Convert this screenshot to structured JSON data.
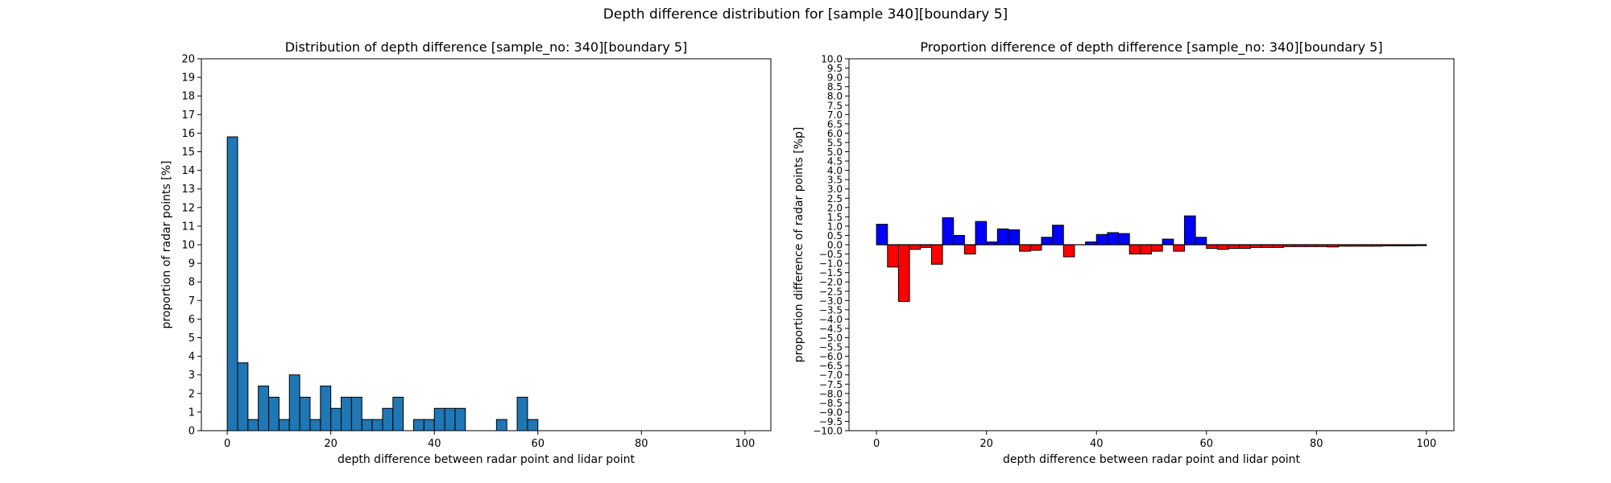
{
  "suptitle": "Depth difference distribution for [sample 340][boundary 5]",
  "chart_data": [
    {
      "type": "bar",
      "title": "Distribution of depth difference [sample_no: 340][boundary 5]",
      "xlabel": "depth difference between radar point and lidar point",
      "ylabel": "proportion of radar points [%]",
      "xlim": [
        -5,
        105
      ],
      "ylim": [
        0,
        20
      ],
      "xticks": [
        0,
        20,
        40,
        60,
        80,
        100
      ],
      "yticks": [
        0,
        1,
        2,
        3,
        4,
        5,
        6,
        7,
        8,
        9,
        10,
        11,
        12,
        13,
        14,
        15,
        16,
        17,
        18,
        19,
        20
      ],
      "bin_width": 2,
      "bin_starts": [
        0,
        2,
        4,
        6,
        8,
        10,
        12,
        14,
        16,
        18,
        20,
        22,
        24,
        26,
        28,
        30,
        32,
        34,
        36,
        38,
        40,
        42,
        44,
        46,
        48,
        50,
        52,
        54,
        56,
        58
      ],
      "values": [
        15.8,
        3.65,
        0.6,
        2.4,
        1.8,
        0.6,
        3.0,
        1.8,
        0.6,
        2.4,
        1.2,
        1.8,
        1.8,
        0.6,
        0.6,
        1.2,
        1.8,
        0,
        0.6,
        0.6,
        1.2,
        1.2,
        1.2,
        0,
        0,
        0,
        0.6,
        0,
        1.8,
        0.6
      ],
      "colors": {
        "bar": "#1f77b4",
        "edge": "#000000"
      }
    },
    {
      "type": "bar",
      "title": "Proportion difference of depth difference [sample_no: 340][boundary 5]",
      "xlabel": "depth difference between radar point and lidar point",
      "ylabel": "proportion difference of radar points [%p]",
      "xlim": [
        -5,
        105
      ],
      "ylim": [
        -10,
        10
      ],
      "xticks": [
        0,
        20,
        40,
        60,
        80,
        100
      ],
      "ytick_step": 0.5,
      "bin_width": 2,
      "bin_starts": [
        0,
        2,
        4,
        6,
        8,
        10,
        12,
        14,
        16,
        18,
        20,
        22,
        24,
        26,
        28,
        30,
        32,
        34,
        36,
        38,
        40,
        42,
        44,
        46,
        48,
        50,
        52,
        54,
        56,
        58,
        60,
        62,
        64,
        66,
        68,
        70,
        72,
        74,
        76,
        78,
        80,
        82,
        84,
        86,
        88,
        90,
        92,
        94,
        96,
        98
      ],
      "values": [
        1.1,
        -1.2,
        -3.05,
        -0.25,
        -0.15,
        -1.05,
        1.45,
        0.5,
        -0.5,
        1.25,
        0.15,
        0.85,
        0.8,
        -0.35,
        -0.3,
        0.4,
        1.05,
        -0.65,
        0,
        0.15,
        0.55,
        0.65,
        0.6,
        -0.5,
        -0.5,
        -0.35,
        0.3,
        -0.35,
        1.55,
        0.4,
        -0.2,
        -0.25,
        -0.2,
        -0.2,
        -0.15,
        -0.15,
        -0.15,
        -0.1,
        -0.1,
        -0.1,
        -0.1,
        -0.12,
        -0.08,
        -0.08,
        -0.08,
        -0.08,
        -0.06,
        -0.06,
        -0.06,
        -0.05
      ],
      "colors": {
        "positive": "#0000ff",
        "negative": "#ff0000",
        "edge": "#000000"
      }
    }
  ]
}
